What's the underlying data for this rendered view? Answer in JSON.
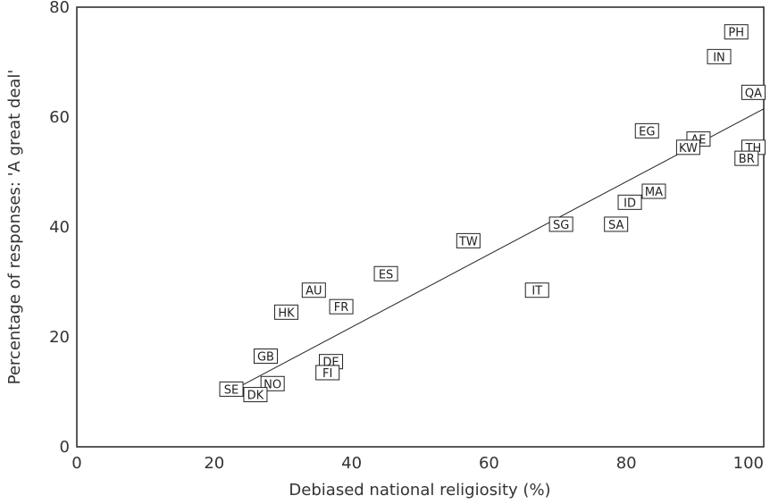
{
  "chart_data": {
    "type": "scatter",
    "title": "",
    "xlabel": "Debiased national religiosity (%)",
    "ylabel": "Percentage of responses: 'A great deal'",
    "xlim": [
      0,
      100
    ],
    "ylim": [
      0,
      80
    ],
    "xticks": [
      "0",
      "20",
      "40",
      "60",
      "80",
      "100"
    ],
    "yticks": [
      "0",
      "20",
      "40",
      "60",
      "80"
    ],
    "grid": false,
    "legend": "none",
    "points": [
      {
        "label": "PH",
        "x": 96,
        "y": 75.5
      },
      {
        "label": "IN",
        "x": 93.5,
        "y": 71
      },
      {
        "label": "QA",
        "x": 98.5,
        "y": 64.5
      },
      {
        "label": "EG",
        "x": 83,
        "y": 57.5
      },
      {
        "label": "AE",
        "x": 90.5,
        "y": 56
      },
      {
        "label": "KW",
        "x": 89,
        "y": 54.5
      },
      {
        "label": "TH",
        "x": 98.5,
        "y": 54.5
      },
      {
        "label": "BR",
        "x": 97.5,
        "y": 52.5
      },
      {
        "label": "MA",
        "x": 84,
        "y": 46.5
      },
      {
        "label": "ID",
        "x": 80.5,
        "y": 44.5
      },
      {
        "label": "SG",
        "x": 70.5,
        "y": 40.5
      },
      {
        "label": "SA",
        "x": 78.5,
        "y": 40.5
      },
      {
        "label": "TW",
        "x": 57,
        "y": 37.5
      },
      {
        "label": "ES",
        "x": 45,
        "y": 31.5
      },
      {
        "label": "IT",
        "x": 67,
        "y": 28.5
      },
      {
        "label": "AU",
        "x": 34.5,
        "y": 28.5
      },
      {
        "label": "FR",
        "x": 38.5,
        "y": 25.5
      },
      {
        "label": "HK",
        "x": 30.5,
        "y": 24.5
      },
      {
        "label": "GB",
        "x": 27.5,
        "y": 16.5
      },
      {
        "label": "DE",
        "x": 37,
        "y": 15.5
      },
      {
        "label": "FI",
        "x": 36.5,
        "y": 13.5
      },
      {
        "label": "NO",
        "x": 28.5,
        "y": 11.5
      },
      {
        "label": "SE",
        "x": 22.5,
        "y": 10.5
      },
      {
        "label": "DK",
        "x": 26,
        "y": 9.5
      }
    ],
    "trendline": {
      "x": [
        23,
        100
      ],
      "y": [
        10.5,
        61.5
      ]
    }
  }
}
